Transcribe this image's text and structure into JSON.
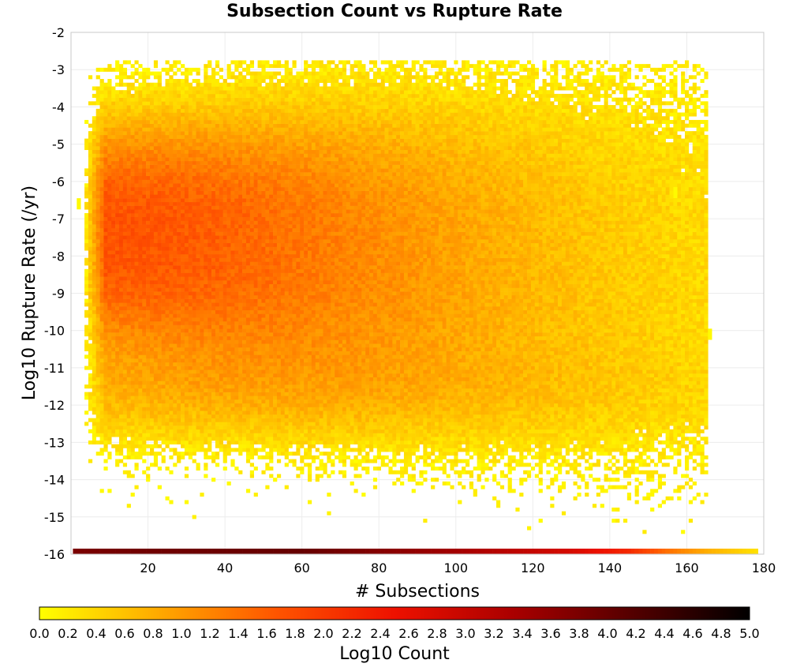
{
  "chart_data": {
    "type": "heatmap",
    "title": "Subsection Count vs Rupture Rate",
    "xlabel": "# Subsections",
    "ylabel": "Log10 Rupture Rate (/yr)",
    "xlim": [
      0,
      180
    ],
    "ylim": [
      -16,
      -2
    ],
    "x_ticks": [
      20,
      40,
      60,
      80,
      100,
      120,
      140,
      160,
      180
    ],
    "y_ticks": [
      -2,
      -3,
      -4,
      -5,
      -6,
      -7,
      -8,
      -9,
      -10,
      -11,
      -12,
      -13,
      -14,
      -15,
      -16
    ],
    "grid": true,
    "bin_width_x": 1,
    "bin_height_y": 0.1,
    "colorbar": {
      "label": "Log10 Count",
      "range": [
        0.0,
        5.0
      ],
      "ticks": [
        "0.0",
        "0.2",
        "0.4",
        "0.6",
        "0.8",
        "1.0",
        "1.2",
        "1.4",
        "1.6",
        "1.8",
        "2.0",
        "2.2",
        "2.4",
        "2.6",
        "2.8",
        "3.0",
        "3.2",
        "3.4",
        "3.6",
        "3.8",
        "4.0",
        "4.2",
        "4.4",
        "4.6",
        "4.8",
        "5.0"
      ],
      "colors": [
        "#ffff00",
        "#ffaa00",
        "#ff5500",
        "#ee1100",
        "#aa0000",
        "#550000",
        "#000000"
      ]
    },
    "density_summary": {
      "peak_log10_count": 1.7,
      "peak_location": {
        "x": 15,
        "y": -7.5
      },
      "main_cloud_x_range": [
        5,
        135
      ],
      "main_cloud_y_range": [
        -14,
        -4
      ],
      "outliers": [
        {
          "x": 2,
          "y": -6.5
        },
        {
          "x": 12,
          "y": -2.8
        },
        {
          "x": 166,
          "y": -10.0
        },
        {
          "x": 157,
          "y": -6.2
        }
      ]
    },
    "bottom_row": {
      "y": -16,
      "x_range": [
        1,
        178
      ],
      "log10_count_by_x": [
        [
          1,
          3.8
        ],
        [
          20,
          3.9
        ],
        [
          60,
          4.0
        ],
        [
          100,
          3.4
        ],
        [
          130,
          2.8
        ],
        [
          145,
          2.2
        ],
        [
          155,
          1.4
        ],
        [
          165,
          0.8
        ],
        [
          178,
          0.3
        ]
      ]
    }
  }
}
